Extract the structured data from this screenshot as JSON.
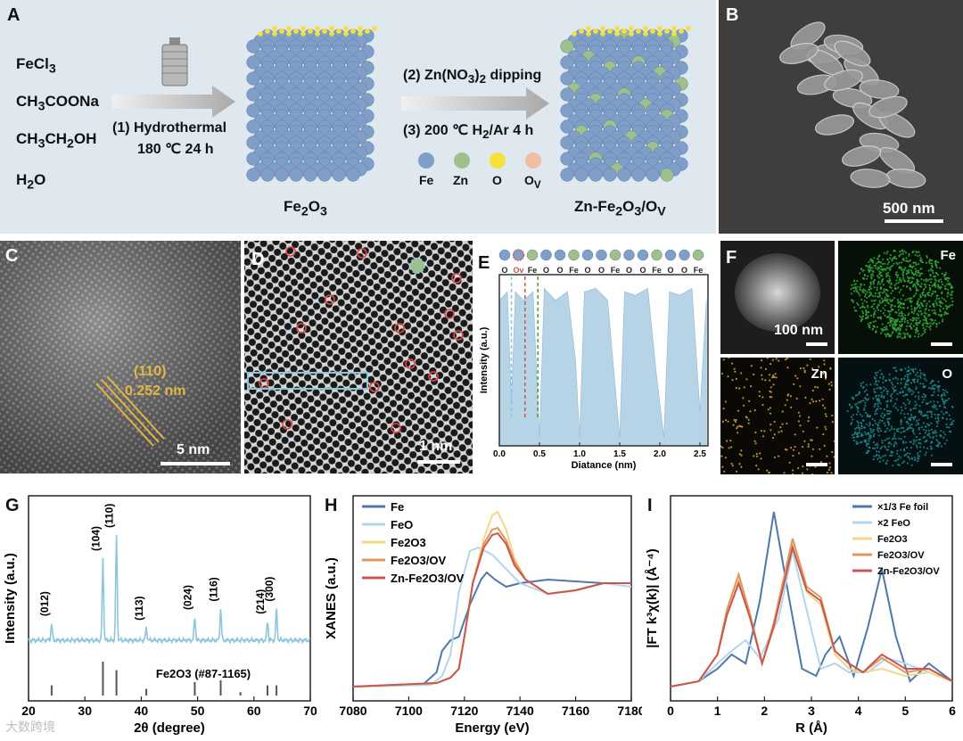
{
  "panelA": {
    "label": "A",
    "reactants": [
      "FeCl3",
      "CH3COONa",
      "CH3CH2OH",
      "H2O"
    ],
    "step1": [
      "(1) Hydrothermal",
      "180 ℃   24 h"
    ],
    "step2": "(2) Zn(NO3)2 dipping",
    "step3": "(3) 200 ℃ H2/Ar 4 h",
    "legend": [
      "Fe",
      "Zn",
      "O",
      "OV"
    ],
    "legend_colors": [
      "#7f9fc9",
      "#9fc08a",
      "#f3e23a",
      "#f2bda2"
    ],
    "product1": "Fe2O3",
    "product2": "Zn-Fe2O3/OV"
  },
  "panelB": {
    "label": "B",
    "scalebar": "500 nm"
  },
  "panelC": {
    "label": "C",
    "plane": "(110)",
    "spacing": "0.252 nm",
    "scalebar": "5 nm"
  },
  "panelD": {
    "label": "D",
    "scalebar": "1 nm"
  },
  "panelE": {
    "label": "E",
    "atoms": [
      "O",
      "OV",
      "Fe",
      "O",
      "O",
      "Fe",
      "O",
      "O",
      "Fe",
      "O",
      "O",
      "Fe",
      "O",
      "O",
      "Fe"
    ],
    "xlabel": "Diatance (nm)",
    "ylabel": "Intensity (a.u.)",
    "xticks": [
      "0.0",
      "0.5",
      "1.0",
      "1.5",
      "2.0",
      "2.5"
    ],
    "xrange": [
      0,
      2.6
    ],
    "chart_data": {
      "type": "line",
      "x": [
        0.0,
        0.1,
        0.15,
        0.2,
        0.3,
        0.42,
        0.5,
        0.56,
        0.7,
        0.85,
        0.95,
        1.0,
        1.06,
        1.2,
        1.35,
        1.5,
        1.56,
        1.7,
        1.85,
        1.95,
        2.05,
        2.12,
        2.25,
        2.4,
        2.5,
        2.58
      ],
      "y": [
        0.85,
        0.9,
        0.25,
        0.9,
        0.85,
        0.9,
        0.05,
        0.92,
        0.85,
        0.9,
        0.5,
        0.05,
        0.9,
        0.92,
        0.85,
        0.05,
        0.9,
        0.88,
        0.92,
        0.45,
        0.05,
        0.9,
        0.88,
        0.92,
        0.2,
        0.85
      ]
    }
  },
  "panelF": {
    "label": "F",
    "scalebar": "100 nm",
    "maps": [
      "Fe",
      "Zn",
      "O"
    ],
    "map_colors": [
      "#2fa83a",
      "#d6a43a",
      "#1c8a8e"
    ]
  },
  "panelG": {
    "label": "G",
    "xlabel": "2θ (degree)",
    "ylabel": "Intensity (a.u.)",
    "xticks": [
      "20",
      "30",
      "40",
      "50",
      "60",
      "70"
    ],
    "xlim": [
      20,
      70
    ],
    "reference": "Fe2O3 (#87-1165)",
    "peaks": [
      {
        "hkl": "(012)",
        "x": 24.1,
        "h": 0.16
      },
      {
        "hkl": "(104)",
        "x": 33.2,
        "h": 0.78
      },
      {
        "hkl": "(110)",
        "x": 35.6,
        "h": 1.0
      },
      {
        "hkl": "(113)",
        "x": 40.9,
        "h": 0.12
      },
      {
        "hkl": "(024)",
        "x": 49.5,
        "h": 0.22
      },
      {
        "hkl": "(116)",
        "x": 54.1,
        "h": 0.3
      },
      {
        "hkl": "(214)",
        "x": 62.4,
        "h": 0.18
      },
      {
        "hkl": "(300)",
        "x": 64.0,
        "h": 0.3
      }
    ],
    "ref_sticks": [
      {
        "x": 24.1,
        "h": 0.3
      },
      {
        "x": 33.2,
        "h": 1.0
      },
      {
        "x": 35.6,
        "h": 0.75
      },
      {
        "x": 40.9,
        "h": 0.2
      },
      {
        "x": 49.5,
        "h": 0.4
      },
      {
        "x": 54.1,
        "h": 0.45
      },
      {
        "x": 57.6,
        "h": 0.1
      },
      {
        "x": 62.4,
        "h": 0.3
      },
      {
        "x": 64.0,
        "h": 0.3
      }
    ],
    "line_color": "#8cc6dc"
  },
  "panelH": {
    "label": "H",
    "xlabel": "Energy (eV)",
    "ylabel": "XANES (a.u.)",
    "xticks": [
      "7080",
      "7100",
      "7120",
      "7140",
      "7160",
      "7180"
    ],
    "chart_data": {
      "type": "line",
      "xlim": [
        7080,
        7180
      ],
      "series": [
        {
          "name": "Fe",
          "color": "#4f78a8",
          "x": [
            7080,
            7105,
            7110,
            7112,
            7115,
            7118,
            7122,
            7126,
            7128,
            7131,
            7135,
            7140,
            7150,
            7160,
            7170,
            7180
          ],
          "y": [
            0.02,
            0.03,
            0.1,
            0.22,
            0.28,
            0.3,
            0.48,
            0.62,
            0.66,
            0.62,
            0.58,
            0.6,
            0.62,
            0.61,
            0.6,
            0.6
          ]
        },
        {
          "name": "FeO",
          "color": "#b3d6ea",
          "x": [
            7080,
            7108,
            7112,
            7115,
            7118,
            7122,
            7125,
            7130,
            7135,
            7140,
            7150,
            7160,
            7170,
            7180
          ],
          "y": [
            0.02,
            0.03,
            0.08,
            0.2,
            0.55,
            0.78,
            0.8,
            0.76,
            0.68,
            0.6,
            0.54,
            0.56,
            0.6,
            0.58
          ]
        },
        {
          "name": "Fe2O3",
          "color": "#f2d68a",
          "x": [
            7080,
            7110,
            7115,
            7118,
            7120,
            7123,
            7127,
            7130,
            7132,
            7135,
            7138,
            7142,
            7150,
            7160,
            7170,
            7180
          ],
          "y": [
            0.02,
            0.04,
            0.07,
            0.12,
            0.3,
            0.6,
            0.85,
            0.98,
            1.0,
            0.9,
            0.74,
            0.62,
            0.54,
            0.56,
            0.6,
            0.6
          ]
        },
        {
          "name": "Fe2O3/OV",
          "color": "#e0955e",
          "x": [
            7080,
            7110,
            7115,
            7118,
            7120,
            7123,
            7127,
            7130,
            7132,
            7135,
            7138,
            7142,
            7150,
            7160,
            7170,
            7180
          ],
          "y": [
            0.02,
            0.04,
            0.07,
            0.12,
            0.3,
            0.6,
            0.82,
            0.9,
            0.91,
            0.84,
            0.72,
            0.62,
            0.54,
            0.56,
            0.6,
            0.6
          ]
        },
        {
          "name": "Zn-Fe2O3/OV",
          "color": "#c8584f",
          "x": [
            7080,
            7110,
            7115,
            7118,
            7120,
            7123,
            7127,
            7130,
            7132,
            7135,
            7138,
            7142,
            7150,
            7160,
            7170,
            7180
          ],
          "y": [
            0.02,
            0.04,
            0.07,
            0.12,
            0.3,
            0.6,
            0.8,
            0.87,
            0.88,
            0.82,
            0.7,
            0.62,
            0.54,
            0.56,
            0.6,
            0.6
          ]
        }
      ]
    }
  },
  "panelI": {
    "label": "I",
    "xlabel": "R (Å)",
    "ylabel": "|FT k³χ(k)| (Å⁻⁴)",
    "xticks": [
      "0",
      "1",
      "2",
      "3",
      "4",
      "5",
      "6"
    ],
    "chart_data": {
      "type": "line",
      "xlim": [
        0,
        6
      ],
      "series": [
        {
          "name": "×1/3 Fe foil",
          "color": "#4f78a8",
          "x": [
            0,
            0.6,
            1.0,
            1.3,
            1.6,
            1.9,
            2.2,
            2.5,
            2.8,
            3.1,
            3.3,
            3.6,
            3.9,
            4.2,
            4.5,
            4.8,
            5.1,
            5.5,
            6.0
          ],
          "y": [
            0.02,
            0.05,
            0.12,
            0.2,
            0.15,
            0.5,
            1.0,
            0.55,
            0.12,
            0.08,
            0.2,
            0.3,
            0.08,
            0.35,
            0.68,
            0.3,
            0.05,
            0.15,
            0.05
          ]
        },
        {
          "name": "×2 FeO",
          "color": "#b3d6ea",
          "x": [
            0,
            0.6,
            1.0,
            1.3,
            1.6,
            1.9,
            2.3,
            2.6,
            2.9,
            3.2,
            3.5,
            3.8,
            4.2,
            4.6,
            5.0,
            5.5,
            6.0
          ],
          "y": [
            0.02,
            0.05,
            0.15,
            0.22,
            0.28,
            0.18,
            0.4,
            0.78,
            0.45,
            0.12,
            0.15,
            0.1,
            0.1,
            0.18,
            0.15,
            0.1,
            0.05
          ]
        },
        {
          "name": "Fe2O3",
          "color": "#f2d68a",
          "x": [
            0,
            0.6,
            1.0,
            1.2,
            1.45,
            1.7,
            1.95,
            2.2,
            2.6,
            2.9,
            3.2,
            3.5,
            3.8,
            4.1,
            4.5,
            5.0,
            5.5,
            6.0
          ],
          "y": [
            0.02,
            0.05,
            0.2,
            0.45,
            0.62,
            0.4,
            0.15,
            0.35,
            0.82,
            0.55,
            0.48,
            0.2,
            0.12,
            0.1,
            0.12,
            0.08,
            0.1,
            0.05
          ]
        },
        {
          "name": "Fe2O3/OV",
          "color": "#e0955e",
          "x": [
            0,
            0.6,
            1.0,
            1.2,
            1.45,
            1.7,
            1.95,
            2.2,
            2.6,
            2.9,
            3.2,
            3.5,
            3.8,
            4.1,
            4.5,
            5.0,
            5.5,
            6.0
          ],
          "y": [
            0.02,
            0.05,
            0.2,
            0.45,
            0.65,
            0.42,
            0.15,
            0.38,
            0.85,
            0.58,
            0.52,
            0.22,
            0.15,
            0.1,
            0.18,
            0.1,
            0.12,
            0.05
          ]
        },
        {
          "name": "Zn-Fe2O3/OV",
          "color": "#c8584f",
          "x": [
            0,
            0.6,
            1.0,
            1.2,
            1.45,
            1.7,
            1.95,
            2.2,
            2.6,
            2.9,
            3.2,
            3.5,
            3.8,
            4.1,
            4.5,
            5.0,
            5.5,
            6.0
          ],
          "y": [
            0.02,
            0.05,
            0.2,
            0.42,
            0.6,
            0.4,
            0.15,
            0.36,
            0.8,
            0.56,
            0.5,
            0.22,
            0.15,
            0.1,
            0.2,
            0.12,
            0.12,
            0.05
          ]
        }
      ]
    }
  },
  "watermark": "大数跨境"
}
